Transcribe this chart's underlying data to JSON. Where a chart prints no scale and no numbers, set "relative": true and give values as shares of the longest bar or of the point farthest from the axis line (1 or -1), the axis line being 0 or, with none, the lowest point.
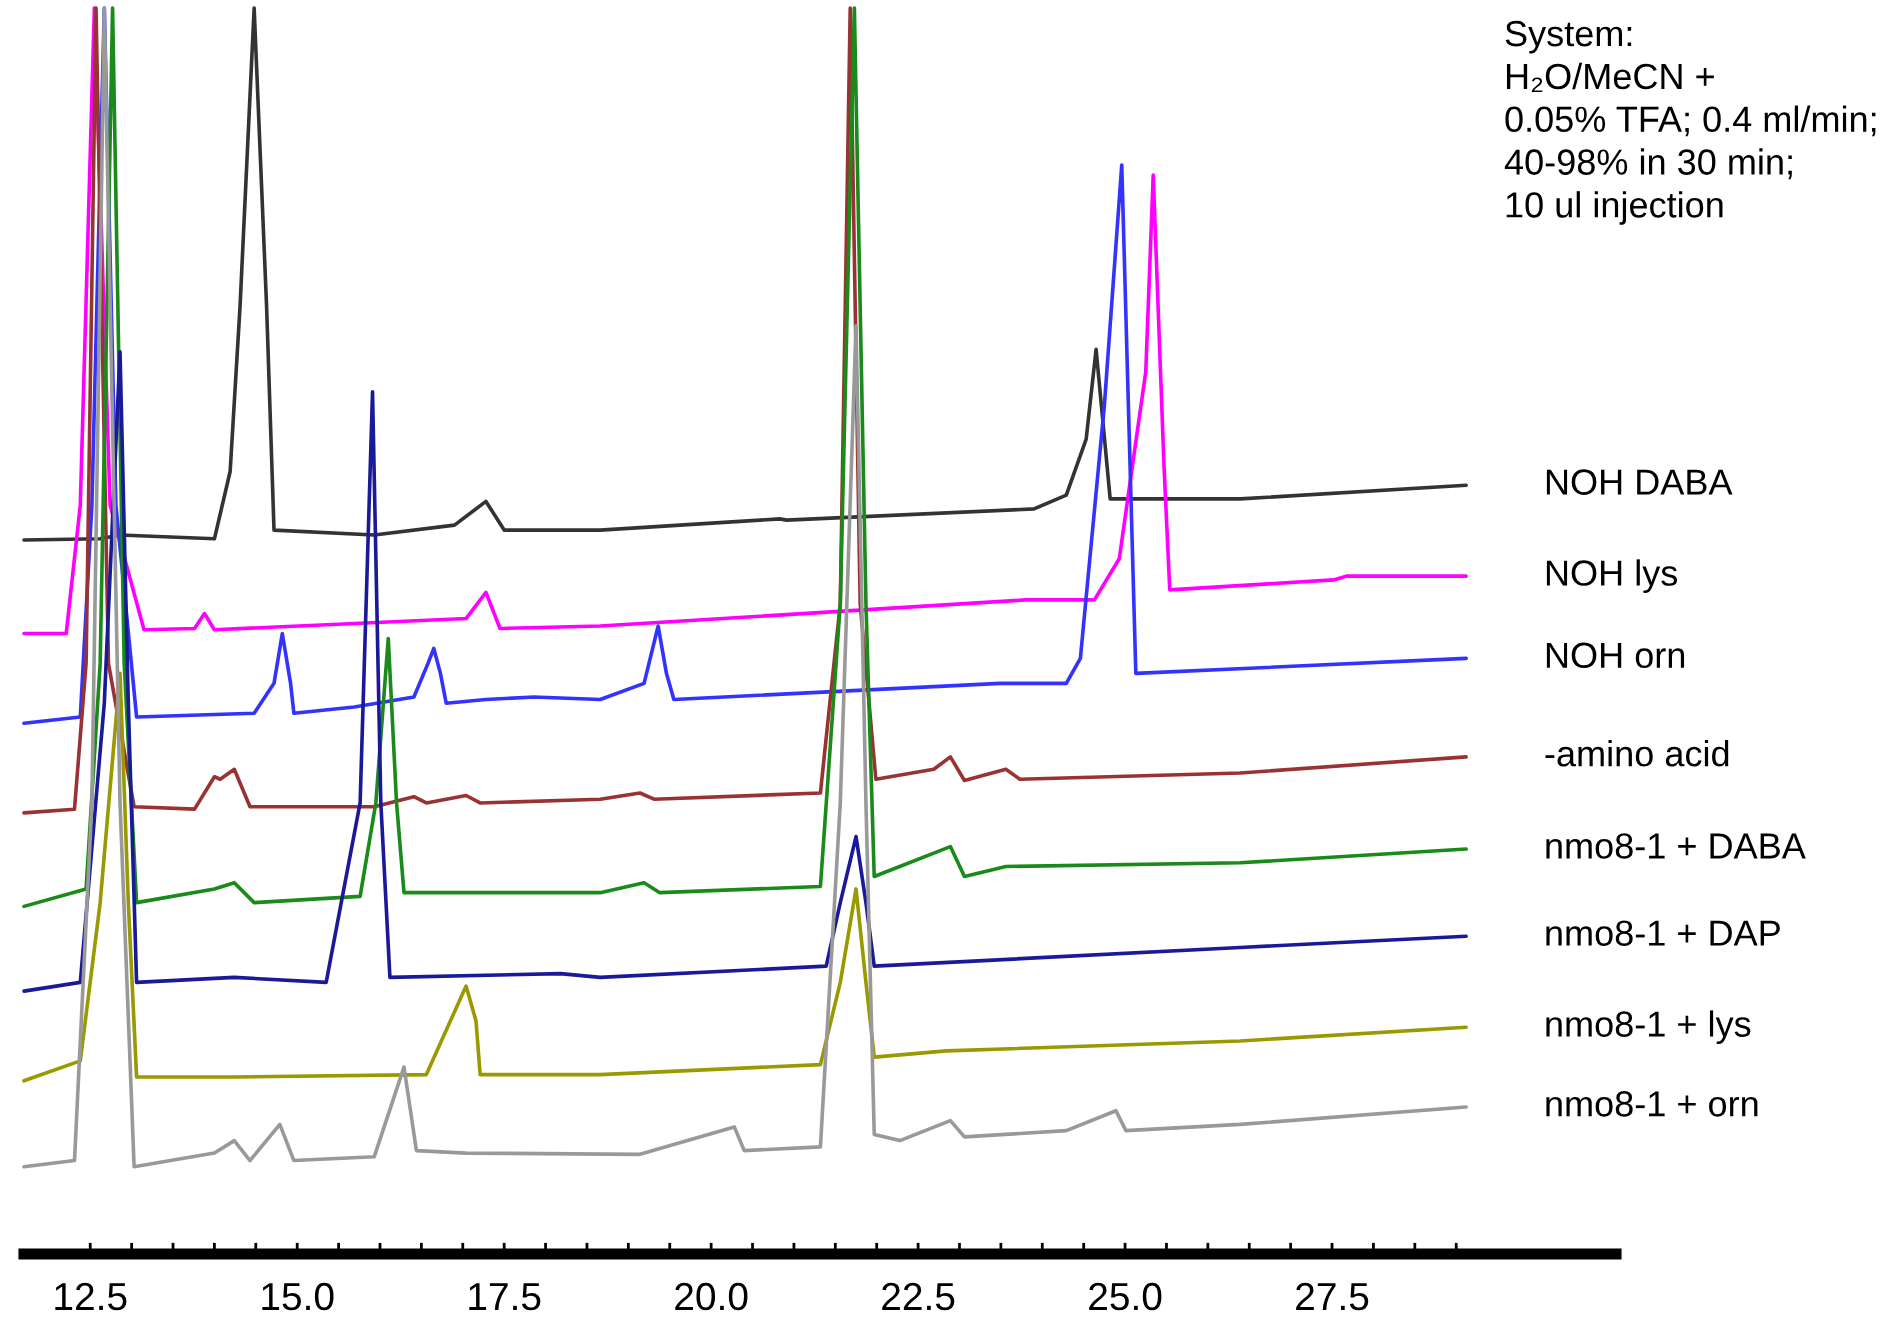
{
  "chart_data": {
    "type": "line",
    "relative": true,
    "legend": false,
    "grid": false,
    "marker": "none",
    "line_style": "solid",
    "xlim": [
      11.7,
      30.93
    ],
    "xticks": [
      {
        "value": 12.5,
        "label": "12.5"
      },
      {
        "value": 15,
        "label": "15.0"
      },
      {
        "value": 17.5,
        "label": "17.5"
      },
      {
        "value": 20,
        "label": "20.0"
      },
      {
        "value": 22.5,
        "label": "22.5"
      },
      {
        "value": 25,
        "label": "25.0"
      },
      {
        "value": 27.5,
        "label": "27.5"
      },
      {
        "value": 13,
        "label": null
      },
      {
        "value": 13.5,
        "label": null
      },
      {
        "value": 14,
        "label": null
      },
      {
        "value": 14.5,
        "label": null
      },
      {
        "value": 15.5,
        "label": null
      },
      {
        "value": 16,
        "label": null
      },
      {
        "value": 16.5,
        "label": null
      },
      {
        "value": 17,
        "label": null
      },
      {
        "value": 18,
        "label": null
      },
      {
        "value": 18.5,
        "label": null
      },
      {
        "value": 19,
        "label": null
      },
      {
        "value": 19.5,
        "label": null
      },
      {
        "value": 20.5,
        "label": null
      },
      {
        "value": 21,
        "label": null
      },
      {
        "value": 21.5,
        "label": null
      },
      {
        "value": 22,
        "label": null
      },
      {
        "value": 23,
        "label": null
      },
      {
        "value": 23.5,
        "label": null
      },
      {
        "value": 24,
        "label": null
      },
      {
        "value": 24.5,
        "label": null
      },
      {
        "value": 25.5,
        "label": null
      },
      {
        "value": 26,
        "label": null
      },
      {
        "value": 26.5,
        "label": null
      },
      {
        "value": 27,
        "label": null
      },
      {
        "value": 28,
        "label": null
      },
      {
        "value": 28.5,
        "label": null
      },
      {
        "value": 29,
        "label": null
      }
    ],
    "annotations": [
      "System:\nH₂O/MeCN +\n0.05% TFA; 0.4 ml/min;\n40-98% in 30 min;\n10 ul injection"
    ],
    "series": [
      {
        "name": "NOH DABA",
        "color": "#333333",
        "x": [
          11.7,
          12.62,
          12.86,
          14.0,
          14.19,
          14.31,
          14.48,
          14.63,
          14.72,
          15.93,
          16.9,
          17.28,
          17.5,
          18.66,
          20.83,
          20.91,
          23.9,
          24.29,
          24.53,
          24.65,
          24.82,
          26.39,
          29.12
        ],
        "values": [
          0.573,
          0.574,
          0.577,
          0.574,
          0.628,
          0.761,
          1,
          0.761,
          0.581,
          0.577,
          0.585,
          0.604,
          0.581,
          0.581,
          0.59,
          0.589,
          0.598,
          0.609,
          0.654,
          0.726,
          0.606,
          0.606,
          0.617
        ]
      },
      {
        "name": "NOH lys",
        "color": "#ff00ff",
        "x": [
          11.7,
          12.21,
          12.38,
          12.55,
          12.74,
          13.15,
          13.76,
          13.88,
          14.0,
          17.04,
          17.28,
          17.45,
          18.66,
          23.8,
          24.63,
          24.93,
          25.25,
          25.34,
          25.47,
          25.54,
          27.52,
          27.67,
          29.12
        ],
        "values": [
          0.498,
          0.498,
          0.601,
          1,
          0.601,
          0.501,
          0.502,
          0.514,
          0.501,
          0.51,
          0.531,
          0.502,
          0.504,
          0.525,
          0.525,
          0.558,
          0.708,
          0.866,
          0.633,
          0.533,
          0.541,
          0.544,
          0.544
        ]
      },
      {
        "name": "NOH orn",
        "color": "#3333ff",
        "x": [
          11.7,
          12.38,
          12.52,
          12.67,
          12.81,
          13.06,
          14.48,
          14.72,
          14.82,
          14.92,
          14.96,
          15.69,
          16.41,
          16.58,
          16.65,
          16.73,
          16.8,
          17.28,
          17.86,
          18.66,
          19.19,
          19.36,
          19.46,
          19.55,
          23.49,
          24.29,
          24.46,
          24.75,
          24.96,
          25.04,
          25.13,
          29.12
        ],
        "values": [
          0.426,
          0.431,
          0.601,
          1,
          0.601,
          0.431,
          0.434,
          0.458,
          0.498,
          0.458,
          0.434,
          0.439,
          0.447,
          0.474,
          0.486,
          0.466,
          0.442,
          0.445,
          0.447,
          0.445,
          0.458,
          0.504,
          0.466,
          0.445,
          0.458,
          0.458,
          0.478,
          0.681,
          0.874,
          0.681,
          0.466,
          0.478
        ]
      },
      {
        "name": "-amino acid",
        "color": "#993333",
        "x": [
          11.7,
          12.31,
          12.45,
          12.57,
          12.72,
          13.03,
          13.76,
          14.0,
          14.07,
          14.24,
          14.43,
          15.93,
          16.41,
          16.56,
          17.04,
          17.21,
          18.66,
          19.14,
          19.31,
          21.32,
          21.56,
          21.68,
          21.8,
          21.99,
          22.69,
          22.89,
          23.06,
          23.56,
          23.73,
          26.39,
          29.12
        ],
        "values": [
          0.354,
          0.357,
          0.474,
          1,
          0.474,
          0.359,
          0.357,
          0.383,
          0.381,
          0.389,
          0.359,
          0.359,
          0.367,
          0.362,
          0.368,
          0.362,
          0.365,
          0.37,
          0.365,
          0.37,
          0.522,
          1,
          0.522,
          0.381,
          0.389,
          0.399,
          0.38,
          0.389,
          0.381,
          0.386,
          0.399
        ]
      },
      {
        "name": "nmo8-1 + DABA",
        "color": "#1a8a1a",
        "x": [
          11.7,
          12.45,
          12.62,
          12.77,
          12.91,
          13.06,
          14.0,
          14.24,
          14.48,
          15.76,
          15.95,
          16.1,
          16.2,
          16.29,
          18.66,
          19.19,
          19.38,
          21.32,
          21.56,
          21.73,
          21.87,
          21.97,
          22.89,
          23.06,
          23.56,
          26.39,
          29.12
        ],
        "values": [
          0.279,
          0.293,
          0.474,
          1,
          0.474,
          0.282,
          0.293,
          0.298,
          0.282,
          0.287,
          0.362,
          0.494,
          0.362,
          0.29,
          0.29,
          0.298,
          0.29,
          0.295,
          0.522,
          1,
          0.522,
          0.303,
          0.327,
          0.303,
          0.311,
          0.314,
          0.325
        ]
      },
      {
        "name": "nmo8-1 + DAP",
        "color": "#1a1a99",
        "x": [
          11.7,
          12.38,
          12.67,
          12.86,
          12.96,
          13.06,
          14.24,
          15.35,
          15.76,
          15.91,
          16.01,
          16.12,
          18.18,
          18.66,
          21.39,
          21.56,
          21.75,
          21.87,
          21.97,
          26.39,
          29.12
        ],
        "values": [
          0.211,
          0.218,
          0.442,
          0.724,
          0.442,
          0.218,
          0.222,
          0.218,
          0.362,
          0.692,
          0.362,
          0.222,
          0.225,
          0.222,
          0.231,
          0.282,
          0.335,
          0.282,
          0.231,
          0.246,
          0.255
        ]
      },
      {
        "name": "nmo8-1 + lys",
        "color": "#999900",
        "x": [
          11.7,
          12.38,
          12.62,
          12.86,
          12.96,
          13.06,
          14.24,
          16.56,
          16.85,
          17.04,
          17.16,
          17.21,
          18.66,
          21.32,
          21.56,
          21.75,
          21.87,
          21.97,
          22.84,
          26.39,
          29.12
        ],
        "values": [
          0.139,
          0.155,
          0.282,
          0.466,
          0.282,
          0.142,
          0.142,
          0.144,
          0.187,
          0.215,
          0.187,
          0.144,
          0.144,
          0.152,
          0.218,
          0.293,
          0.218,
          0.158,
          0.163,
          0.171,
          0.182
        ]
      },
      {
        "name": "nmo8-1 + orn",
        "color": "#999999",
        "x": [
          11.7,
          12.31,
          12.52,
          12.67,
          12.86,
          13.03,
          14.0,
          14.24,
          14.43,
          14.79,
          14.96,
          15.93,
          16.29,
          16.44,
          17.04,
          19.14,
          20.28,
          20.4,
          21.32,
          21.56,
          21.75,
          21.87,
          21.97,
          22.28,
          22.89,
          23.06,
          24.29,
          24.89,
          25.01,
          26.39,
          29.12
        ],
        "values": [
          0.07,
          0.075,
          0.362,
          1,
          0.362,
          0.07,
          0.081,
          0.091,
          0.075,
          0.104,
          0.075,
          0.078,
          0.15,
          0.083,
          0.081,
          0.08,
          0.102,
          0.083,
          0.086,
          0.362,
          0.745,
          0.362,
          0.096,
          0.091,
          0.107,
          0.094,
          0.099,
          0.115,
          0.099,
          0.104,
          0.118
        ]
      }
    ]
  }
}
